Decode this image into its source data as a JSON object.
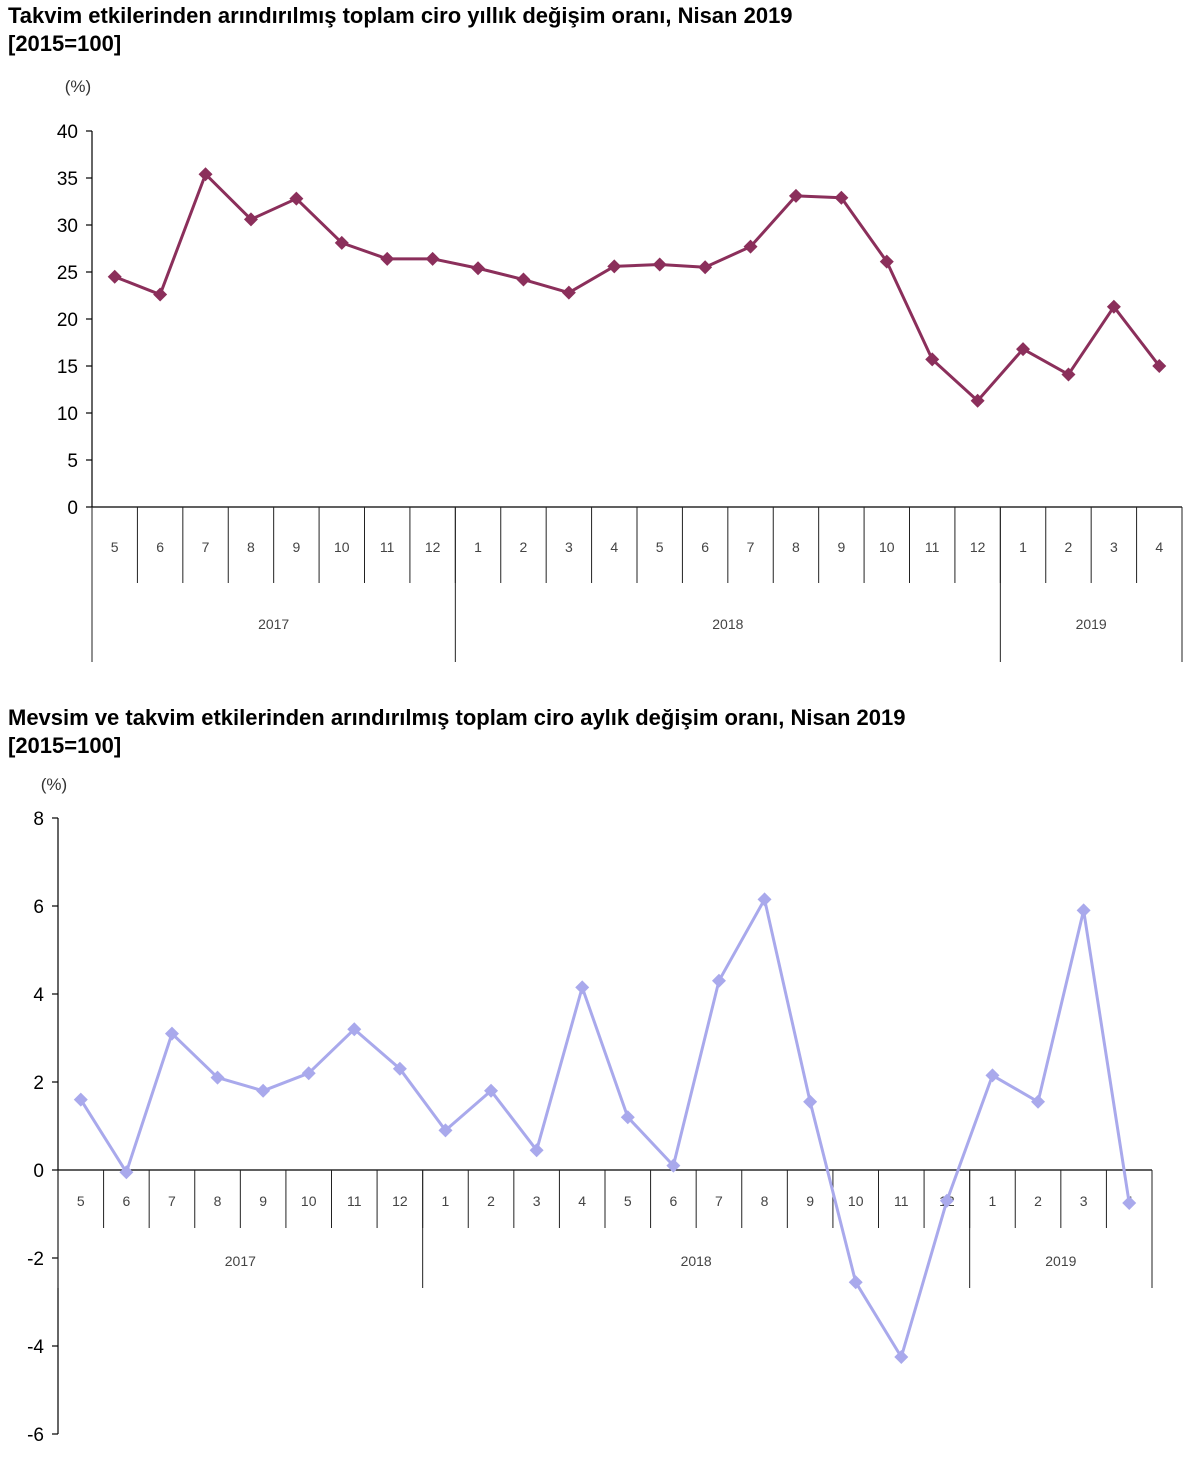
{
  "charts": [
    {
      "title_line1": "Takvim etkilerinden arındırılmış toplam ciro yıllık değişim oranı, Nisan 2019",
      "title_line2": "[2015=100]"
    },
    {
      "title_line1": "Mevsim ve takvim etkilerinden arındırılmış toplam ciro aylık değişim oranı, Nisan 2019",
      "title_line2": "[2015=100]"
    }
  ],
  "colors": {
    "chart1_series": "#8b2f5b",
    "chart2_series": "#a9a9ec",
    "axis": "#000000"
  },
  "chart_data": [
    {
      "type": "line",
      "title": "Takvim etkilerinden arındırılmış toplam ciro yıllık değişim oranı, Nisan 2019 [2015=100]",
      "ylabel": "(%)",
      "ylim": [
        0,
        40
      ],
      "yticks": [
        0,
        5,
        10,
        15,
        20,
        25,
        30,
        35,
        40
      ],
      "categories": [
        "5",
        "6",
        "7",
        "8",
        "9",
        "10",
        "11",
        "12",
        "1",
        "2",
        "3",
        "4",
        "5",
        "6",
        "7",
        "8",
        "9",
        "10",
        "11",
        "12",
        "1",
        "2",
        "3",
        "4"
      ],
      "year_groups": [
        {
          "label": "2017",
          "months": 8
        },
        {
          "label": "2018",
          "months": 12
        },
        {
          "label": "2019",
          "months": 4
        }
      ],
      "marker": "diamond",
      "values": [
        24.5,
        22.6,
        35.4,
        30.6,
        32.8,
        28.1,
        26.4,
        26.4,
        25.4,
        24.2,
        22.8,
        25.6,
        25.8,
        25.5,
        27.7,
        33.1,
        32.9,
        26.1,
        15.7,
        11.3,
        16.8,
        14.1,
        21.3,
        15.0
      ],
      "grid": false
    },
    {
      "type": "line",
      "title": "Mevsim ve takvim etkilerinden arındırılmış toplam ciro aylık değişim oranı, Nisan 2019 [2015=100]",
      "ylabel": "(%)",
      "ylim": [
        -6,
        8
      ],
      "yticks": [
        -6,
        -4,
        -2,
        0,
        2,
        4,
        6,
        8
      ],
      "categories": [
        "5",
        "6",
        "7",
        "8",
        "9",
        "10",
        "11",
        "12",
        "1",
        "2",
        "3",
        "4",
        "5",
        "6",
        "7",
        "8",
        "9",
        "10",
        "11",
        "12",
        "1",
        "2",
        "3",
        "4"
      ],
      "year_groups": [
        {
          "label": "2017",
          "months": 8
        },
        {
          "label": "2018",
          "months": 12
        },
        {
          "label": "2019",
          "months": 4
        }
      ],
      "marker": "diamond",
      "values": [
        1.6,
        -0.05,
        3.1,
        2.1,
        1.8,
        2.2,
        3.2,
        2.3,
        0.9,
        1.8,
        0.45,
        4.15,
        1.2,
        0.1,
        4.3,
        6.15,
        1.55,
        -2.55,
        -4.25,
        -0.7,
        2.15,
        1.55,
        5.9,
        -0.75
      ],
      "grid": false
    }
  ]
}
